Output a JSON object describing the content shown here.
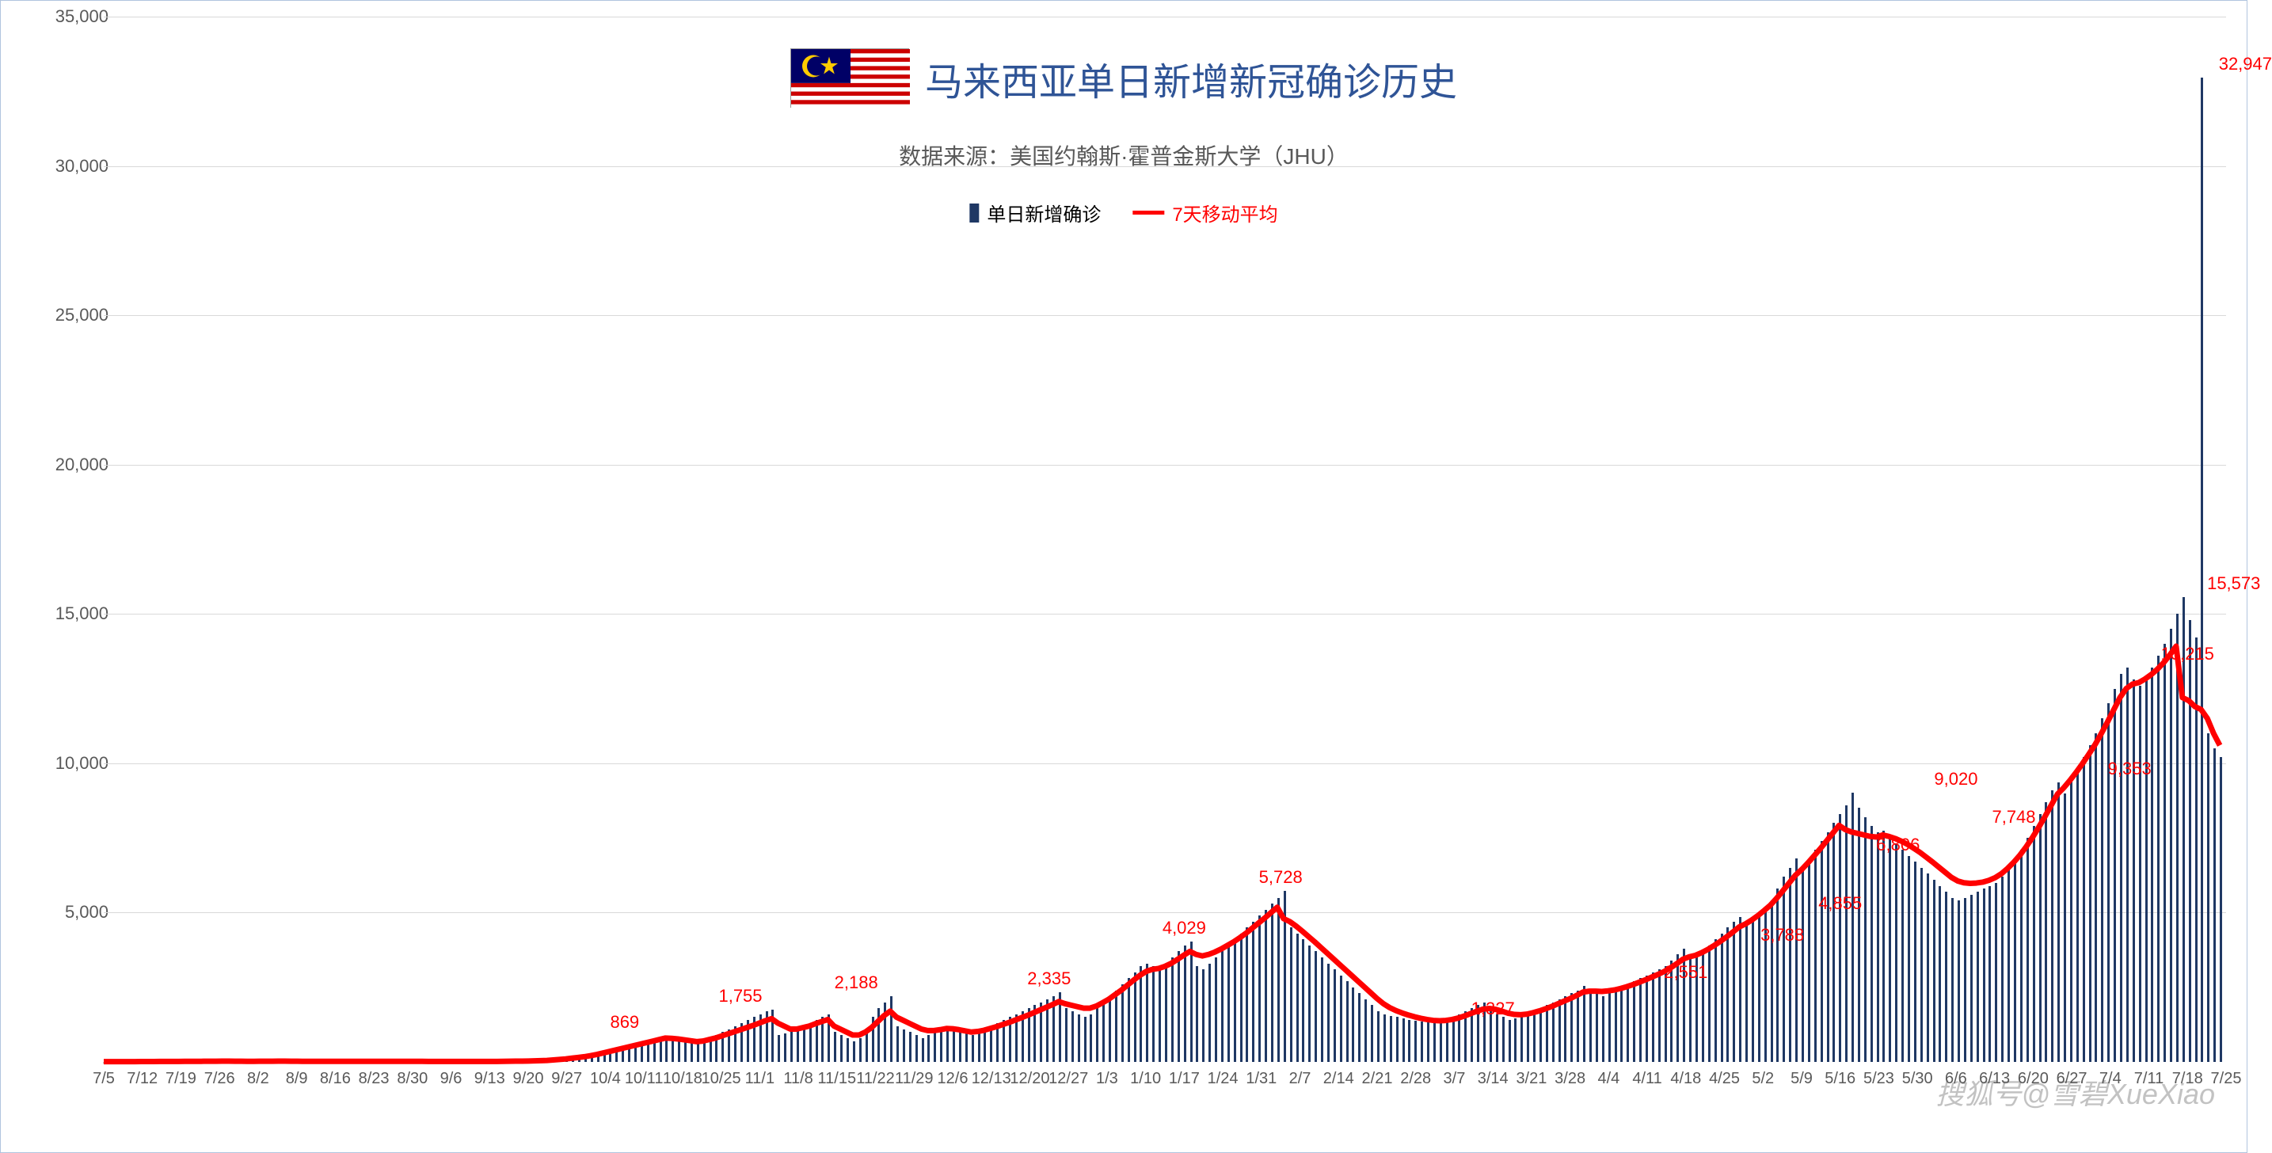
{
  "chart": {
    "type": "bar_with_line",
    "title": "马来西亚单日新增新冠确诊历史",
    "title_color": "#2f5496",
    "title_fontsize": 48,
    "subtitle": "数据来源：美国约翰斯·霍普金斯大学（JHU）",
    "subtitle_color": "#595959",
    "subtitle_fontsize": 28,
    "background_color": "#ffffff",
    "border_color": "#b0c4de",
    "grid_color": "#d9d9d9",
    "bar_color": "#1f3864",
    "line_color": "#ff0000",
    "line_width": 7,
    "label_color": "#ff0000",
    "label_fontsize": 22,
    "axis_color": "#595959",
    "axis_fontsize": 22,
    "ylim": [
      0,
      35000
    ],
    "ytick_step": 5000,
    "yticks": [
      "-",
      "5,000",
      "10,000",
      "15,000",
      "20,000",
      "25,000",
      "30,000",
      "35,000"
    ],
    "xlabels": [
      "7/5",
      "7/12",
      "7/19",
      "7/26",
      "8/2",
      "8/9",
      "8/16",
      "8/23",
      "8/30",
      "9/6",
      "9/13",
      "9/20",
      "9/27",
      "10/4",
      "10/11",
      "10/18",
      "10/25",
      "11/1",
      "11/8",
      "11/15",
      "11/22",
      "11/29",
      "12/6",
      "12/13",
      "12/20",
      "12/27",
      "1/3",
      "1/10",
      "1/17",
      "1/24",
      "1/31",
      "2/7",
      "2/14",
      "2/21",
      "2/28",
      "3/7",
      "3/14",
      "3/21",
      "3/28",
      "4/4",
      "4/11",
      "4/18",
      "4/25",
      "5/2",
      "5/9",
      "5/16",
      "5/23",
      "5/30",
      "6/6",
      "6/13",
      "6/20",
      "6/27",
      "7/4",
      "7/11",
      "7/18",
      "7/25"
    ],
    "legend": {
      "bar_label": "单日新增确诊",
      "line_label": "7天移动平均"
    },
    "data_labels": [
      {
        "x_index": 13.5,
        "value": 869,
        "text": "869"
      },
      {
        "x_index": 16.5,
        "value": 1755,
        "text": "1,755"
      },
      {
        "x_index": 19.5,
        "value": 2188,
        "text": "2,188"
      },
      {
        "x_index": 24.5,
        "value": 2335,
        "text": "2,335"
      },
      {
        "x_index": 28,
        "value": 4029,
        "text": "4,029"
      },
      {
        "x_index": 30.5,
        "value": 5728,
        "text": "5,728"
      },
      {
        "x_index": 36,
        "value": 1327,
        "text": "1,327"
      },
      {
        "x_index": 41,
        "value": 2551,
        "text": "2,551"
      },
      {
        "x_index": 43.5,
        "value": 3788,
        "text": "3,788"
      },
      {
        "x_index": 45,
        "value": 4855,
        "text": "4,855"
      },
      {
        "x_index": 46.5,
        "value": 6806,
        "text": "6,806"
      },
      {
        "x_index": 48,
        "value": 9020,
        "text": "9,020"
      },
      {
        "x_index": 49.5,
        "value": 7748,
        "text": "7,748"
      },
      {
        "x_index": 52.5,
        "value": 9353,
        "text": "9,353"
      },
      {
        "x_index": 54,
        "value": 13215,
        "text": "13,215"
      },
      {
        "x_index": 55.2,
        "value": 15573,
        "text": "15,573"
      },
      {
        "x_index": 55.5,
        "value": 32947,
        "text": "32,947"
      }
    ],
    "bars": [
      10,
      10,
      10,
      10,
      10,
      10,
      15,
      15,
      15,
      15,
      15,
      20,
      20,
      20,
      20,
      20,
      25,
      25,
      25,
      25,
      25,
      20,
      20,
      20,
      20,
      25,
      25,
      25,
      25,
      25,
      20,
      20,
      20,
      20,
      20,
      20,
      20,
      20,
      20,
      20,
      20,
      20,
      20,
      20,
      20,
      20,
      20,
      20,
      20,
      20,
      20,
      15,
      15,
      15,
      15,
      15,
      15,
      15,
      15,
      15,
      15,
      15,
      15,
      20,
      25,
      25,
      30,
      30,
      35,
      40,
      50,
      60,
      80,
      100,
      120,
      150,
      180,
      200,
      250,
      300,
      350,
      400,
      450,
      500,
      550,
      600,
      650,
      700,
      750,
      800,
      869,
      800,
      750,
      700,
      650,
      600,
      700,
      800,
      900,
      1000,
      1100,
      1200,
      1300,
      1400,
      1500,
      1600,
      1700,
      1755,
      900,
      950,
      1000,
      1100,
      1200,
      1300,
      1400,
      1500,
      1600,
      1000,
      900,
      800,
      700,
      800,
      1100,
      1500,
      1800,
      2000,
      2188,
      1200,
      1100,
      1000,
      900,
      800,
      900,
      1000,
      1100,
      1200,
      1100,
      1000,
      950,
      900,
      1000,
      1100,
      1200,
      1300,
      1400,
      1500,
      1600,
      1700,
      1800,
      1900,
      2000,
      2100,
      2200,
      2335,
      1800,
      1700,
      1600,
      1500,
      1600,
      1800,
      2000,
      2200,
      2400,
      2600,
      2800,
      3000,
      3200,
      3300,
      3200,
      3100,
      3300,
      3500,
      3700,
      3900,
      4029,
      3200,
      3100,
      3300,
      3500,
      3700,
      3900,
      4100,
      4300,
      4500,
      4700,
      4900,
      5100,
      5300,
      5500,
      5728,
      4500,
      4300,
      4100,
      3900,
      3700,
      3500,
      3300,
      3100,
      2900,
      2700,
      2500,
      2300,
      2100,
      1900,
      1700,
      1600,
      1550,
      1500,
      1450,
      1400,
      1380,
      1360,
      1340,
      1327,
      1350,
      1400,
      1500,
      1600,
      1700,
      1800,
      1900,
      2000,
      1800,
      1600,
      1500,
      1400,
      1450,
      1500,
      1600,
      1700,
      1800,
      1900,
      2000,
      2100,
      2200,
      2300,
      2400,
      2551,
      2400,
      2300,
      2200,
      2300,
      2400,
      2500,
      2600,
      2700,
      2800,
      2900,
      3000,
      3100,
      3200,
      3400,
      3600,
      3788,
      3600,
      3500,
      3700,
      3900,
      4100,
      4300,
      4500,
      4700,
      4855,
      4600,
      4800,
      5000,
      5200,
      5400,
      5800,
      6200,
      6500,
      6806,
      6500,
      6800,
      7100,
      7400,
      7700,
      8000,
      8300,
      8600,
      9020,
      8500,
      8200,
      7900,
      7700,
      7748,
      7500,
      7300,
      7100,
      6900,
      6700,
      6500,
      6300,
      6100,
      5900,
      5700,
      5500,
      5400,
      5500,
      5600,
      5700,
      5800,
      5900,
      6000,
      6200,
      6500,
      6800,
      7100,
      7500,
      7900,
      8300,
      8700,
      9100,
      9353,
      9000,
      9400,
      9800,
      10200,
      10600,
      11000,
      11500,
      12000,
      12500,
      13000,
      13215,
      12800,
      12600,
      12900,
      13200,
      13600,
      14000,
      14500,
      15000,
      15573,
      14800,
      14200,
      32947,
      11000,
      10500,
      10200
    ],
    "moving_avg": [
      10,
      10,
      10,
      10,
      10,
      10,
      12,
      13,
      14,
      15,
      15,
      17,
      18,
      19,
      20,
      20,
      22,
      23,
      24,
      25,
      25,
      23,
      22,
      21,
      20,
      22,
      23,
      24,
      25,
      25,
      23,
      22,
      21,
      20,
      20,
      20,
      20,
      20,
      20,
      20,
      20,
      20,
      20,
      20,
      20,
      20,
      20,
      20,
      20,
      20,
      20,
      19,
      18,
      17,
      16,
      15,
      15,
      15,
      15,
      15,
      15,
      15,
      15,
      17,
      20,
      22,
      25,
      27,
      30,
      35,
      42,
      50,
      65,
      82,
      100,
      125,
      150,
      175,
      210,
      250,
      300,
      350,
      400,
      450,
      500,
      550,
      600,
      650,
      700,
      750,
      800,
      790,
      770,
      740,
      710,
      680,
      700,
      750,
      800,
      870,
      940,
      1010,
      1080,
      1150,
      1220,
      1300,
      1380,
      1450,
      1300,
      1200,
      1100,
      1100,
      1150,
      1200,
      1280,
      1350,
      1420,
      1200,
      1100,
      1000,
      900,
      900,
      1000,
      1150,
      1350,
      1550,
      1700,
      1500,
      1400,
      1300,
      1200,
      1100,
      1050,
      1050,
      1080,
      1120,
      1110,
      1080,
      1040,
      1000,
      1020,
      1060,
      1120,
      1180,
      1250,
      1320,
      1400,
      1480,
      1560,
      1650,
      1740,
      1830,
      1920,
      2020,
      1950,
      1900,
      1850,
      1800,
      1800,
      1870,
      1980,
      2100,
      2250,
      2400,
      2570,
      2740,
      2900,
      3030,
      3100,
      3130,
      3200,
      3300,
      3430,
      3570,
      3700,
      3600,
      3550,
      3600,
      3680,
      3780,
      3900,
      4020,
      4160,
      4310,
      4480,
      4650,
      4820,
      5000,
      5180,
      4800,
      4700,
      4550,
      4380,
      4200,
      4020,
      3830,
      3640,
      3450,
      3260,
      3070,
      2880,
      2690,
      2500,
      2310,
      2120,
      1950,
      1820,
      1720,
      1640,
      1570,
      1510,
      1460,
      1420,
      1390,
      1380,
      1390,
      1420,
      1470,
      1540,
      1620,
      1700,
      1770,
      1790,
      1760,
      1700,
      1630,
      1590,
      1580,
      1600,
      1650,
      1710,
      1780,
      1860,
      1950,
      2040,
      2130,
      2230,
      2340,
      2370,
      2370,
      2360,
      2380,
      2410,
      2460,
      2520,
      2590,
      2670,
      2750,
      2840,
      2930,
      3030,
      3150,
      3290,
      3440,
      3520,
      3570,
      3660,
      3770,
      3900,
      4040,
      4190,
      4350,
      4520,
      4620,
      4750,
      4900,
      5070,
      5250,
      5480,
      5730,
      5990,
      6250,
      6440,
      6660,
      6900,
      7140,
      7400,
      7660,
      7920,
      7780,
      7700,
      7650,
      7600,
      7550,
      7530,
      7600,
      7550,
      7480,
      7390,
      7280,
      7150,
      7010,
      6850,
      6690,
      6520,
      6350,
      6180,
      6060,
      6000,
      5980,
      5990,
      6020,
      6080,
      6170,
      6300,
      6480,
      6690,
      6930,
      7210,
      7520,
      7860,
      8220,
      8600,
      8970,
      9180,
      9430,
      9700,
      9990,
      10300,
      10620,
      10990,
      11380,
      11790,
      12200,
      12500,
      12650,
      12700,
      12820,
      12970,
      13150,
      13370,
      13630,
      13920,
      12200,
      12100,
      11900,
      11800,
      11500,
      11000,
      10600
    ]
  },
  "flag": {
    "stripe_colors": [
      "#cc0001",
      "#ffffff"
    ],
    "canton_color": "#000066",
    "star_color": "#ffcc00"
  },
  "watermark": "搜狐号@雪碧XueXiao"
}
